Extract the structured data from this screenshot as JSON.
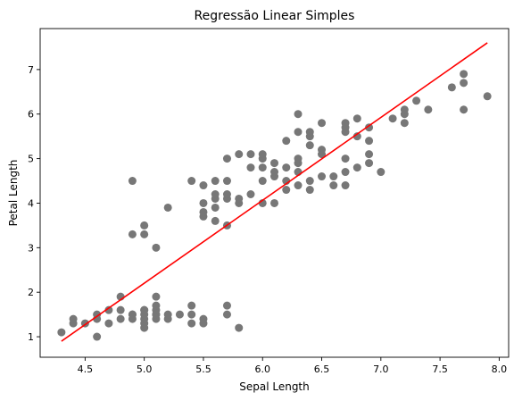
{
  "chart_data": {
    "type": "scatter",
    "title": "Regressão Linear Simples",
    "xlabel": "Sepal Length",
    "ylabel": "Petal Length",
    "xlim": [
      4.12,
      8.08
    ],
    "ylim": [
      0.54,
      7.92
    ],
    "xticks": [
      "4.5",
      "5.0",
      "5.5",
      "6.0",
      "6.5",
      "7.0",
      "7.5",
      "8.0"
    ],
    "yticks": [
      "1",
      "2",
      "3",
      "4",
      "5",
      "6",
      "7"
    ],
    "grid": false,
    "legend": "none",
    "series": [
      {
        "type": "scatter",
        "color": "#777777",
        "x": [
          4.3,
          4.4,
          4.4,
          4.5,
          4.6,
          4.6,
          4.6,
          4.7,
          4.7,
          4.8,
          4.8,
          4.8,
          4.9,
          4.9,
          4.9,
          5.0,
          5.0,
          5.0,
          5.0,
          5.0,
          5.0,
          5.1,
          5.1,
          5.1,
          5.1,
          5.1,
          5.1,
          5.2,
          5.2,
          5.3,
          5.4,
          5.4,
          5.4,
          5.5,
          5.5,
          5.7,
          5.7,
          5.8,
          4.9,
          4.9,
          5.0,
          5.0,
          5.1,
          5.2,
          5.4,
          5.5,
          5.5,
          5.5,
          5.5,
          5.6,
          5.6,
          5.6,
          5.6,
          5.6,
          5.7,
          5.7,
          5.7,
          5.7,
          5.7,
          5.8,
          5.8,
          5.8,
          5.9,
          5.9,
          5.9,
          6.0,
          6.0,
          6.0,
          6.0,
          6.0,
          6.1,
          6.1,
          6.1,
          6.1,
          6.2,
          6.2,
          6.2,
          6.2,
          6.3,
          6.3,
          6.3,
          6.3,
          6.3,
          6.3,
          6.4,
          6.4,
          6.4,
          6.4,
          6.4,
          6.5,
          6.5,
          6.5,
          6.5,
          6.6,
          6.6,
          6.7,
          6.7,
          6.7,
          6.7,
          6.7,
          6.7,
          6.8,
          6.8,
          6.8,
          6.9,
          6.9,
          6.9,
          6.9,
          7.0,
          7.1,
          7.2,
          7.2,
          7.2,
          7.3,
          7.4,
          7.6,
          7.7,
          7.7,
          7.7,
          7.9
        ],
        "y": [
          1.1,
          1.3,
          1.4,
          1.3,
          1.0,
          1.4,
          1.5,
          1.3,
          1.6,
          1.4,
          1.6,
          1.9,
          1.4,
          1.5,
          1.5,
          1.2,
          1.3,
          1.4,
          1.5,
          1.6,
          1.6,
          1.4,
          1.5,
          1.5,
          1.6,
          1.7,
          1.9,
          1.4,
          1.5,
          1.5,
          1.3,
          1.5,
          1.7,
          1.3,
          1.4,
          1.5,
          1.7,
          1.2,
          3.3,
          4.5,
          3.3,
          3.5,
          3.0,
          3.9,
          4.5,
          3.7,
          3.8,
          4.0,
          4.4,
          3.6,
          3.9,
          4.1,
          4.2,
          4.5,
          3.5,
          4.1,
          4.2,
          4.5,
          5.0,
          4.0,
          4.1,
          5.1,
          4.2,
          4.8,
          5.1,
          4.0,
          4.5,
          4.8,
          5.0,
          5.1,
          4.0,
          4.6,
          4.7,
          4.9,
          4.3,
          4.5,
          4.8,
          5.4,
          4.4,
          4.7,
          4.9,
          5.0,
          5.6,
          6.0,
          4.3,
          4.5,
          5.3,
          5.5,
          5.6,
          4.6,
          5.1,
          5.2,
          5.8,
          4.4,
          4.6,
          4.4,
          4.7,
          5.0,
          5.6,
          5.7,
          5.8,
          4.8,
          5.5,
          5.9,
          4.9,
          5.1,
          5.4,
          5.7,
          4.7,
          5.9,
          5.8,
          6.0,
          6.1,
          6.3,
          6.1,
          6.6,
          6.1,
          6.7,
          6.9,
          6.4
        ]
      },
      {
        "type": "line",
        "color": "#ff0000",
        "x": [
          4.3,
          7.9
        ],
        "y": [
          0.9,
          7.6
        ]
      }
    ]
  }
}
